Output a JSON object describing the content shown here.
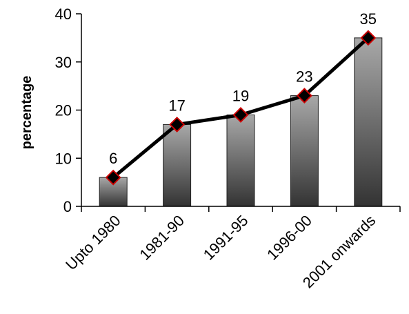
{
  "chart_data": {
    "type": "bar",
    "title": "",
    "xlabel": "",
    "ylabel": "percentage",
    "ylim": [
      0,
      40
    ],
    "yticks": [
      0,
      10,
      20,
      30,
      40
    ],
    "categories": [
      "Upto 1980",
      "1981-90",
      "1991-95",
      "1996-00",
      "2001 onwards"
    ],
    "values": [
      6,
      17,
      19,
      23,
      35
    ],
    "line_overlay": true,
    "grid": false,
    "legend": "none",
    "colors": {
      "bar_light": "#a8a8a8",
      "bar_dark": "#333333",
      "line": "#000000",
      "marker_fill": "#000000",
      "marker_edge": "#cc0000"
    }
  }
}
